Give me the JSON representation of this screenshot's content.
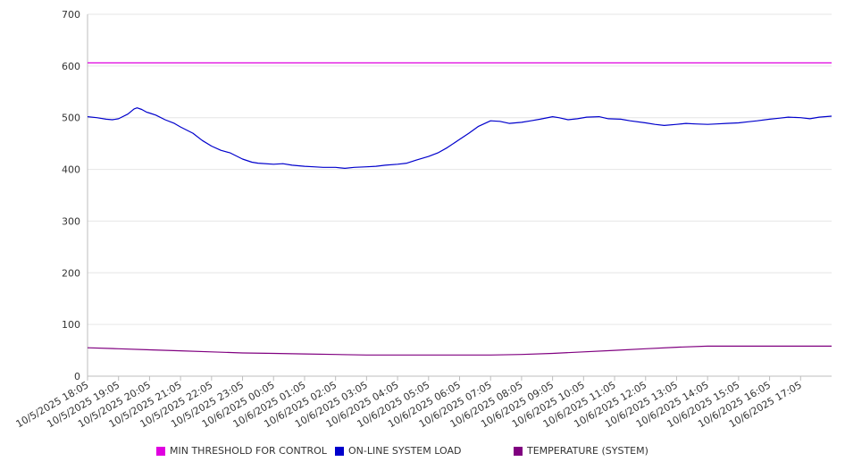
{
  "chart_data": {
    "type": "line",
    "title": "",
    "xlabel": "",
    "ylabel": "",
    "ylim": [
      0,
      700
    ],
    "yticks": [
      0,
      100,
      200,
      300,
      400,
      500,
      600,
      700
    ],
    "grid": true,
    "legend_position": "bottom",
    "x_tick_labels": [
      "10/5/2025 18:05",
      "10/5/2025 19:05",
      "10/5/2025 20:05",
      "10/5/2025 21:05",
      "10/5/2025 22:05",
      "10/5/2025 23:05",
      "10/6/2025 00:05",
      "10/6/2025 01:05",
      "10/6/2025 02:05",
      "10/6/2025 03:05",
      "10/6/2025 04:05",
      "10/6/2025 05:05",
      "10/6/2025 06:05",
      "10/6/2025 07:05",
      "10/6/2025 08:05",
      "10/6/2025 09:05",
      "10/6/2025 10:05",
      "10/6/2025 11:05",
      "10/6/2025 12:05",
      "10/6/2025 13:05",
      "10/6/2025 14:05",
      "10/6/2025 15:05",
      "10/6/2025 16:05",
      "10/6/2025 17:05"
    ],
    "series": [
      {
        "name": "MIN THRESHOLD FOR CONTROL",
        "color": "#e000e0",
        "x": [
          0,
          24
        ],
        "values": [
          606,
          606
        ]
      },
      {
        "name": "ON-LINE SYSTEM LOAD",
        "color": "#0000cc",
        "x": [
          0,
          0.3,
          0.6,
          0.8,
          1.0,
          1.3,
          1.5,
          1.6,
          1.75,
          1.9,
          2.0,
          2.2,
          2.5,
          2.8,
          3.0,
          3.4,
          3.7,
          4.0,
          4.3,
          4.6,
          5.0,
          5.3,
          5.5,
          6.0,
          6.3,
          6.6,
          7.0,
          7.3,
          7.6,
          8.0,
          8.3,
          8.6,
          9.0,
          9.3,
          9.6,
          10.0,
          10.3,
          10.6,
          11.0,
          11.3,
          11.6,
          12.0,
          12.3,
          12.6,
          13.0,
          13.3,
          13.6,
          14.0,
          14.3,
          14.6,
          15.0,
          15.2,
          15.5,
          15.8,
          16.1,
          16.5,
          16.8,
          17.2,
          17.5,
          18.0,
          18.3,
          18.6,
          19.0,
          19.3,
          19.6,
          20.0,
          20.3,
          20.6,
          21.0,
          21.3,
          21.6,
          22.0,
          22.3,
          22.6,
          23.0,
          23.3,
          23.6,
          24.0
        ],
        "values": [
          502,
          500,
          497,
          496,
          498,
          507,
          517,
          519,
          516,
          511,
          509,
          505,
          496,
          489,
          482,
          470,
          456,
          445,
          437,
          432,
          420,
          414,
          412,
          410,
          411,
          408,
          406,
          405,
          404,
          404,
          402,
          404,
          405,
          406,
          408,
          410,
          412,
          418,
          425,
          432,
          442,
          458,
          470,
          483,
          494,
          493,
          489,
          491,
          494,
          497,
          502,
          500,
          496,
          498,
          501,
          502,
          498,
          497,
          494,
          490,
          487,
          485,
          487,
          489,
          488,
          487,
          488,
          489,
          490,
          492,
          494,
          497,
          499,
          501,
          500,
          498,
          501,
          503
        ]
      },
      {
        "name": "TEMPERATURE (SYSTEM)",
        "color": "#800080",
        "x": [
          0,
          1,
          2,
          3,
          4,
          5,
          6,
          7,
          8,
          9,
          10,
          11,
          12,
          13,
          14,
          15,
          16,
          17,
          18,
          19,
          20,
          21,
          22,
          23,
          24
        ],
        "values": [
          55,
          53,
          51,
          49,
          47,
          45,
          44,
          43,
          42,
          41,
          41,
          41,
          41,
          41,
          42,
          44,
          47,
          50,
          53,
          56,
          58,
          58,
          58,
          58,
          58
        ]
      }
    ]
  }
}
